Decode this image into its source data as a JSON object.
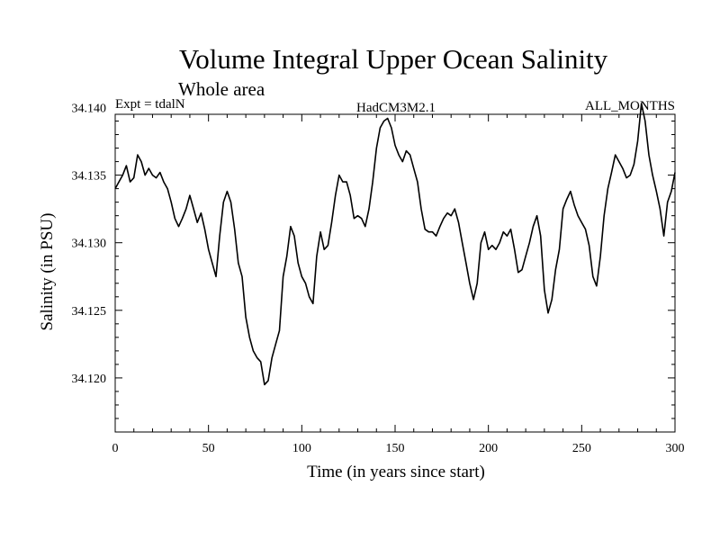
{
  "chart_data": {
    "type": "line",
    "title": "Volume Integral Upper Ocean Salinity",
    "subtitle": "Whole area",
    "experiment_label": "Expt = tdalN",
    "model_label": "HadCM3M2.1",
    "months_label": "ALL_MONTHS",
    "xlabel": "Time (in years since start)",
    "ylabel": "Salinity (in PSU)",
    "xlim": [
      0,
      300
    ],
    "ylim": [
      34.116,
      34.1395
    ],
    "x_ticks": [
      0,
      50,
      100,
      150,
      200,
      250,
      300
    ],
    "x_tick_labels": [
      "0",
      "50",
      "100",
      "150",
      "200",
      "250",
      "300"
    ],
    "y_ticks": [
      34.12,
      34.125,
      34.13,
      34.135,
      34.14
    ],
    "y_tick_labels": [
      "34.120",
      "34.125",
      "34.130",
      "34.135",
      "34.140"
    ],
    "grid": false,
    "series": [
      {
        "name": "Salinity",
        "x": [
          0,
          2,
          4,
          6,
          8,
          10,
          12,
          14,
          16,
          18,
          20,
          22,
          24,
          26,
          28,
          30,
          32,
          34,
          36,
          38,
          40,
          42,
          44,
          46,
          48,
          50,
          52,
          54,
          56,
          58,
          60,
          62,
          64,
          66,
          68,
          70,
          72,
          74,
          76,
          78,
          80,
          82,
          84,
          86,
          88,
          90,
          92,
          94,
          96,
          98,
          100,
          102,
          104,
          106,
          108,
          110,
          112,
          114,
          116,
          118,
          120,
          122,
          124,
          126,
          128,
          130,
          132,
          134,
          136,
          138,
          140,
          142,
          144,
          146,
          148,
          150,
          152,
          154,
          156,
          158,
          160,
          162,
          164,
          166,
          168,
          170,
          172,
          174,
          176,
          178,
          180,
          182,
          184,
          186,
          188,
          190,
          192,
          194,
          196,
          198,
          200,
          202,
          204,
          206,
          208,
          210,
          212,
          214,
          216,
          218,
          220,
          222,
          224,
          226,
          228,
          230,
          232,
          234,
          236,
          238,
          240,
          242,
          244,
          246,
          248,
          250,
          252,
          254,
          256,
          258,
          260,
          262,
          264,
          266,
          268,
          270,
          272,
          274,
          276,
          278,
          280,
          282,
          284,
          286,
          288,
          290,
          292,
          294,
          296,
          298,
          300
        ],
        "values": [
          34.134,
          34.1345,
          34.135,
          34.1357,
          34.1345,
          34.1348,
          34.1365,
          34.136,
          34.135,
          34.1355,
          34.135,
          34.1348,
          34.1352,
          34.1345,
          34.134,
          34.133,
          34.1318,
          34.1312,
          34.1318,
          34.1325,
          34.1335,
          34.1325,
          34.1315,
          34.1322,
          34.131,
          34.1295,
          34.1285,
          34.1275,
          34.1305,
          34.133,
          34.1338,
          34.133,
          34.131,
          34.1285,
          34.1275,
          34.1245,
          34.123,
          34.122,
          34.1215,
          34.1212,
          34.1195,
          34.1198,
          34.1215,
          34.1225,
          34.1235,
          34.1275,
          34.129,
          34.1312,
          34.1305,
          34.1285,
          34.1275,
          34.127,
          34.126,
          34.1255,
          34.129,
          34.1308,
          34.1295,
          34.1298,
          34.1315,
          34.1335,
          34.135,
          34.1345,
          34.1345,
          34.1335,
          34.1318,
          34.132,
          34.1318,
          34.1312,
          34.1325,
          34.1345,
          34.137,
          34.1385,
          34.139,
          34.1392,
          34.1385,
          34.1372,
          34.1365,
          34.136,
          34.1368,
          34.1365,
          34.1355,
          34.1345,
          34.1325,
          34.131,
          34.1308,
          34.1308,
          34.1305,
          34.1312,
          34.1318,
          34.1322,
          34.132,
          34.1325,
          34.1315,
          34.13,
          34.1285,
          34.127,
          34.1258,
          34.127,
          34.13,
          34.1308,
          34.1295,
          34.1298,
          34.1295,
          34.13,
          34.1308,
          34.1305,
          34.131,
          34.1295,
          34.1278,
          34.128,
          34.129,
          34.13,
          34.1312,
          34.132,
          34.1305,
          34.1265,
          34.1248,
          34.1258,
          34.128,
          34.1295,
          34.1325,
          34.1332,
          34.1338,
          34.1328,
          34.132,
          34.1315,
          34.131,
          34.1298,
          34.1275,
          34.1268,
          34.129,
          34.132,
          34.134,
          34.1352,
          34.1365,
          34.136,
          34.1355,
          34.1348,
          34.135,
          34.1358,
          34.1375,
          34.1403,
          34.139,
          34.1365,
          34.135,
          34.1338,
          34.1325,
          34.1305,
          34.133,
          34.1338,
          34.1352
        ]
      }
    ]
  }
}
